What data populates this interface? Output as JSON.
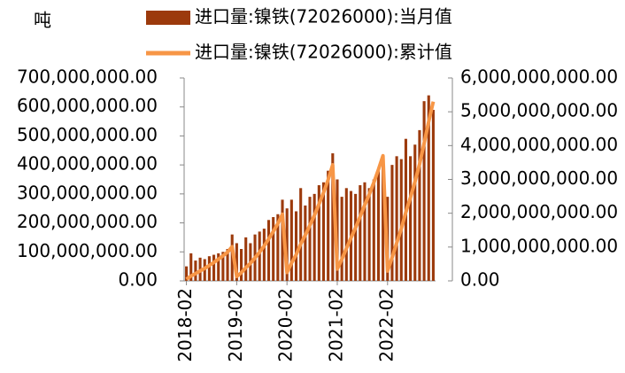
{
  "chart_data": {
    "type": "bar-line",
    "unit_label": "吨",
    "categories": [
      "2018-02",
      null,
      null,
      null,
      null,
      null,
      null,
      null,
      null,
      null,
      null,
      "2019-02",
      null,
      null,
      null,
      null,
      null,
      null,
      null,
      null,
      null,
      null,
      "2020-02",
      null,
      null,
      null,
      null,
      null,
      null,
      null,
      null,
      null,
      null,
      "2021-02",
      null,
      null,
      null,
      null,
      null,
      null,
      null,
      null,
      null,
      null,
      "2022-02",
      null,
      null,
      null,
      null,
      null,
      null,
      null,
      null,
      null,
      null
    ],
    "series": [
      {
        "name": "进口量:镍铁(72026000):当月值",
        "type": "bar",
        "color": "#9c3a0c",
        "axis": "y",
        "values": [
          50000000,
          95000000,
          70000000,
          80000000,
          75000000,
          85000000,
          90000000,
          95000000,
          100000000,
          110000000,
          160000000,
          130000000,
          110000000,
          150000000,
          130000000,
          160000000,
          170000000,
          180000000,
          210000000,
          220000000,
          230000000,
          280000000,
          250000000,
          280000000,
          240000000,
          320000000,
          260000000,
          290000000,
          300000000,
          330000000,
          340000000,
          380000000,
          440000000,
          350000000,
          290000000,
          320000000,
          310000000,
          300000000,
          330000000,
          340000000,
          320000000,
          350000000,
          380000000,
          410000000,
          290000000,
          400000000,
          430000000,
          420000000,
          490000000,
          430000000,
          470000000,
          520000000,
          620000000,
          640000000,
          590000000
        ]
      },
      {
        "name": "进口量:镍铁(72026000):累计值",
        "type": "line",
        "color": "#f79646",
        "axis": "y2",
        "values": [
          50000000,
          145000000,
          215000000,
          295000000,
          370000000,
          455000000,
          545000000,
          640000000,
          740000000,
          850000000,
          1010000000,
          130000000,
          240000000,
          390000000,
          520000000,
          680000000,
          850000000,
          1030000000,
          1240000000,
          1460000000,
          1690000000,
          1970000000,
          250000000,
          530000000,
          770000000,
          1090000000,
          1350000000,
          1640000000,
          1940000000,
          2270000000,
          2610000000,
          2990000000,
          3430000000,
          350000000,
          640000000,
          960000000,
          1270000000,
          1570000000,
          1900000000,
          2240000000,
          2560000000,
          2910000000,
          3290000000,
          3700000000,
          290000000,
          690000000,
          1120000000,
          1540000000,
          2030000000,
          2460000000,
          2930000000,
          3450000000,
          4070000000,
          4710000000,
          5300000000
        ]
      }
    ],
    "ylim": [
      0,
      700000000
    ],
    "yticks": [
      {
        "value": 0,
        "label": "0.00"
      },
      {
        "value": 100000000,
        "label": "100,000,000.00"
      },
      {
        "value": 200000000,
        "label": "200,000,000.00"
      },
      {
        "value": 300000000,
        "label": "300,000,000.00"
      },
      {
        "value": 400000000,
        "label": "400,000,000.00"
      },
      {
        "value": 500000000,
        "label": "500,000,000.00"
      },
      {
        "value": 600000000,
        "label": "600,000,000.00"
      },
      {
        "value": 700000000,
        "label": "700,000,000.00"
      }
    ],
    "y2lim": [
      0,
      6000000000
    ],
    "y2ticks": [
      {
        "value": 0,
        "label": "0.00"
      },
      {
        "value": 1000000000,
        "label": "1,000,000,000.00"
      },
      {
        "value": 2000000000,
        "label": "2,000,000,000.00"
      },
      {
        "value": 3000000000,
        "label": "3,000,000,000.00"
      },
      {
        "value": 4000000000,
        "label": "4,000,000,000.00"
      },
      {
        "value": 5000000000,
        "label": "5,000,000,000.00"
      },
      {
        "value": 6000000000,
        "label": "6,000,000,000.00"
      }
    ]
  }
}
